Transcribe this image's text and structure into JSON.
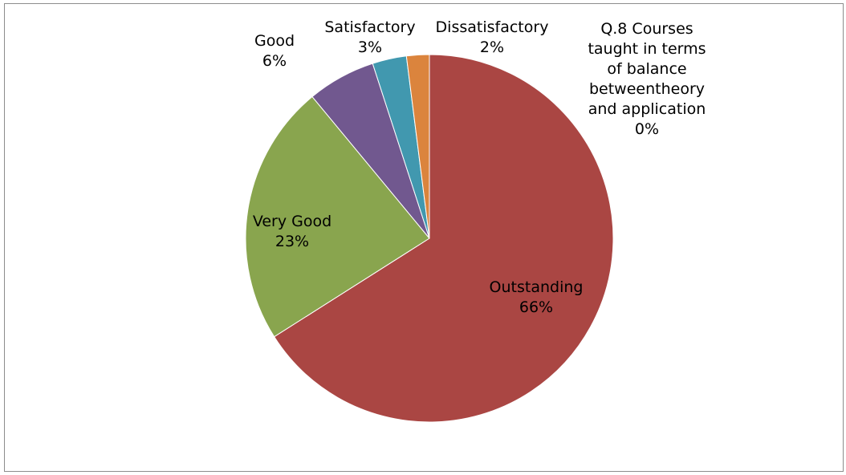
{
  "chart_data": {
    "type": "pie",
    "title": "",
    "slices": [
      {
        "name": "Q.8 Courses taught in terms of balance betweentheory and application",
        "value": 0,
        "percent_label": "0%",
        "color": "#4f81bd"
      },
      {
        "name": "Outstanding",
        "value": 66,
        "percent_label": "66%",
        "color": "#aa4643"
      },
      {
        "name": "Very Good",
        "value": 23,
        "percent_label": "23%",
        "color": "#89a54e"
      },
      {
        "name": "Good",
        "value": 6,
        "percent_label": "6%",
        "color": "#71588f"
      },
      {
        "name": "Satisfactory",
        "value": 3,
        "percent_label": "3%",
        "color": "#4198af"
      },
      {
        "name": "Dissatisfactory",
        "value": 2,
        "percent_label": "2%",
        "color": "#db843d"
      }
    ],
    "legend": "none"
  }
}
